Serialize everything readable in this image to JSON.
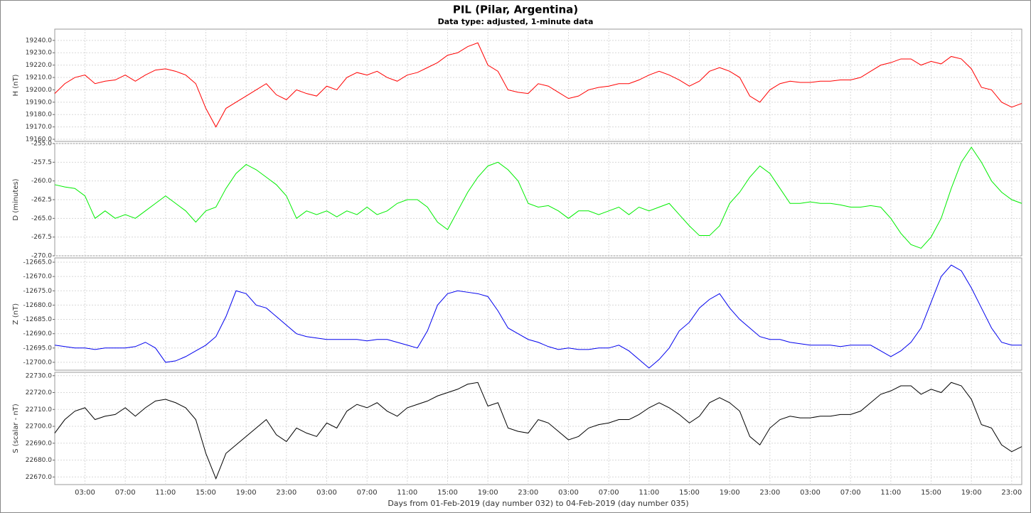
{
  "chart_data": {
    "type": "line",
    "title": "PIL (Pilar, Argentina)",
    "subtitle": "Data type: adjusted, 1-minute data",
    "x_label": "Days from 01-Feb-2019 (day number 032) to 04-Feb-2019 (day number 035)",
    "grid": true,
    "xlim": [
      0,
      96
    ],
    "xticks": [
      {
        "value": 3,
        "label": "03:00"
      },
      {
        "value": 7,
        "label": "07:00"
      },
      {
        "value": 11,
        "label": "11:00"
      },
      {
        "value": 15,
        "label": "15:00"
      },
      {
        "value": 19,
        "label": "19:00"
      },
      {
        "value": 23,
        "label": "23:00"
      },
      {
        "value": 27,
        "label": "03:00"
      },
      {
        "value": 31,
        "label": "07:00"
      },
      {
        "value": 35,
        "label": "11:00"
      },
      {
        "value": 39,
        "label": "15:00"
      },
      {
        "value": 43,
        "label": "19:00"
      },
      {
        "value": 47,
        "label": "23:00"
      },
      {
        "value": 51,
        "label": "03:00"
      },
      {
        "value": 55,
        "label": "07:00"
      },
      {
        "value": 59,
        "label": "11:00"
      },
      {
        "value": 63,
        "label": "15:00"
      },
      {
        "value": 67,
        "label": "19:00"
      },
      {
        "value": 71,
        "label": "23:00"
      },
      {
        "value": 75,
        "label": "03:00"
      },
      {
        "value": 79,
        "label": "07:00"
      },
      {
        "value": 83,
        "label": "11:00"
      },
      {
        "value": 87,
        "label": "15:00"
      },
      {
        "value": 91,
        "label": "19:00"
      },
      {
        "value": 95,
        "label": "23:00"
      }
    ],
    "x": [
      0,
      1,
      2,
      3,
      4,
      5,
      6,
      7,
      8,
      9,
      10,
      11,
      12,
      13,
      14,
      15,
      16,
      17,
      18,
      19,
      20,
      21,
      22,
      23,
      24,
      25,
      26,
      27,
      28,
      29,
      30,
      31,
      32,
      33,
      34,
      35,
      36,
      37,
      38,
      39,
      40,
      41,
      42,
      43,
      44,
      45,
      46,
      47,
      48,
      49,
      50,
      51,
      52,
      53,
      54,
      55,
      56,
      57,
      58,
      59,
      60,
      61,
      62,
      63,
      64,
      65,
      66,
      67,
      68,
      69,
      70,
      71,
      72,
      73,
      74,
      75,
      76,
      77,
      78,
      79,
      80,
      81,
      82,
      83,
      84,
      85,
      86,
      87,
      88,
      89,
      90,
      91,
      92,
      93,
      94,
      95,
      96
    ],
    "panels": [
      {
        "y_label": "H (nT)",
        "color": "#ff0000",
        "ylim": [
          19158.3,
          19249.1
        ],
        "yticks": [
          {
            "value": 19160,
            "label": "19160.0"
          },
          {
            "value": 19170,
            "label": "19170.0"
          },
          {
            "value": 19180,
            "label": "19180.0"
          },
          {
            "value": 19190,
            "label": "19190.0"
          },
          {
            "value": 19200,
            "label": "19200.0"
          },
          {
            "value": 19210,
            "label": "19210.0"
          },
          {
            "value": 19220,
            "label": "19220.0"
          },
          {
            "value": 19230,
            "label": "19230.0"
          },
          {
            "value": 19240,
            "label": "19240.0"
          }
        ],
        "values": [
          19197,
          19205,
          19210,
          19212,
          19205,
          19207,
          19208,
          19212,
          19207,
          19212,
          19216,
          19217,
          19215,
          19212,
          19205,
          19185,
          19170,
          19185,
          19190,
          19195,
          19200,
          19205,
          19196,
          19192,
          19200,
          19197,
          19195,
          19203,
          19200,
          19210,
          19214,
          19212,
          19215,
          19210,
          19207,
          19212,
          19214,
          19218,
          19222,
          19228,
          19230,
          19235,
          19238,
          19220,
          19215,
          19200,
          19198,
          19197,
          19205,
          19203,
          19198,
          19193,
          19195,
          19200,
          19202,
          19203,
          19205,
          19205,
          19208,
          19212,
          19215,
          19212,
          19208,
          19203,
          19207,
          19215,
          19218,
          19215,
          19210,
          19195,
          19190,
          19200,
          19205,
          19207,
          19206,
          19206,
          19207,
          19207,
          19208,
          19208,
          19210,
          19215,
          19220,
          19222,
          19225,
          19225,
          19220,
          19223,
          19221,
          19227,
          19225,
          19217,
          19202,
          19200,
          19190,
          19186,
          19189
        ]
      },
      {
        "y_label": "D (minutes)",
        "color": "#00ee00",
        "ylim": [
          -270,
          -255
        ],
        "yticks": [
          {
            "value": -270,
            "label": "-270.0"
          },
          {
            "value": -267.5,
            "label": "-267.5"
          },
          {
            "value": -265,
            "label": "-265.0"
          },
          {
            "value": -262.5,
            "label": "-262.5"
          },
          {
            "value": -260,
            "label": "-260.0"
          },
          {
            "value": -257.5,
            "label": "-257.5"
          },
          {
            "value": -255,
            "label": "-255.0"
          }
        ],
        "values": [
          -260.5,
          -260.8,
          -261,
          -262,
          -265,
          -264,
          -265,
          -264.5,
          -265,
          -264,
          -263,
          -262,
          -263,
          -264,
          -265.5,
          -264,
          -263.5,
          -261,
          -259,
          -257.8,
          -258.5,
          -259.5,
          -260.5,
          -262,
          -265,
          -264,
          -264.5,
          -264,
          -264.8,
          -264,
          -264.5,
          -263.5,
          -264.5,
          -264,
          -263,
          -262.5,
          -262.5,
          -263.5,
          -265.5,
          -266.5,
          -264,
          -261.5,
          -259.5,
          -258,
          -257.5,
          -258.5,
          -260,
          -263,
          -263.5,
          -263.3,
          -264,
          -265,
          -264,
          -264,
          -264.5,
          -264,
          -263.5,
          -264.5,
          -263.5,
          -264,
          -263.5,
          -263,
          -264.5,
          -266,
          -267.3,
          -267.3,
          -266,
          -263,
          -261.5,
          -259.5,
          -258,
          -259,
          -261,
          -263,
          -263,
          -262.8,
          -263,
          -263,
          -263.2,
          -263.5,
          -263.5,
          -263.3,
          -263.5,
          -265,
          -267,
          -268.5,
          -269,
          -267.5,
          -265,
          -261,
          -257.5,
          -255.5,
          -257.5,
          -260,
          -261.5,
          -262.5,
          -263
        ]
      },
      {
        "y_label": "Z (nT)",
        "color": "#0000ee",
        "ylim": [
          -12702.75,
          -12663.5
        ],
        "yticks": [
          {
            "value": -12700,
            "label": "-12700.0"
          },
          {
            "value": -12695,
            "label": "-12695.0"
          },
          {
            "value": -12690,
            "label": "-12690.0"
          },
          {
            "value": -12685,
            "label": "-12685.0"
          },
          {
            "value": -12680,
            "label": "-12680.0"
          },
          {
            "value": -12675,
            "label": "-12675.0"
          },
          {
            "value": -12670,
            "label": "-12670.0"
          },
          {
            "value": -12665,
            "label": "-12665.0"
          }
        ],
        "values": [
          -12694,
          -12694.5,
          -12695,
          -12695,
          -12695.5,
          -12695,
          -12695,
          -12695,
          -12694.5,
          -12693,
          -12695,
          -12700,
          -12699.5,
          -12698,
          -12696,
          -12694,
          -12691,
          -12684,
          -12675,
          -12676,
          -12680,
          -12681,
          -12684,
          -12687,
          -12690,
          -12691,
          -12691.5,
          -12692,
          -12692,
          -12692,
          -12692,
          -12692.5,
          -12692,
          -12692,
          -12693,
          -12694,
          -12695,
          -12689,
          -12680,
          -12676,
          -12675,
          -12675.5,
          -12676,
          -12677,
          -12682,
          -12688,
          -12690,
          -12692,
          -12693,
          -12694.5,
          -12695.5,
          -12695,
          -12695.5,
          -12695.5,
          -12695,
          -12695,
          -12694,
          -12696,
          -12699,
          -12702,
          -12699,
          -12695,
          -12689,
          -12686,
          -12681,
          -12678,
          -12676,
          -12681,
          -12685,
          -12688,
          -12691,
          -12692,
          -12692,
          -12693,
          -12693.5,
          -12694,
          -12694,
          -12694,
          -12694.5,
          -12694,
          -12694,
          -12694,
          -12696,
          -12698,
          -12696,
          -12693,
          -12688,
          -12679,
          -12670,
          -12666,
          -12668,
          -12674,
          -12681,
          -12688,
          -12693,
          -12694,
          -12694
        ]
      },
      {
        "y_label": "S (scalar - nT)",
        "color": "#000000",
        "ylim": [
          22665.5,
          22732
        ],
        "yticks": [
          {
            "value": 22670,
            "label": "22670.0"
          },
          {
            "value": 22680,
            "label": "22680.0"
          },
          {
            "value": 22690,
            "label": "22690.0"
          },
          {
            "value": 22700,
            "label": "22700.0"
          },
          {
            "value": 22710,
            "label": "22710.0"
          },
          {
            "value": 22720,
            "label": "22720.0"
          },
          {
            "value": 22730,
            "label": "22730.0"
          }
        ],
        "values": [
          22696,
          22704,
          22709,
          22711,
          22704,
          22706,
          22707,
          22711,
          22706,
          22711,
          22715,
          22716,
          22714,
          22711,
          22704,
          22684,
          22669,
          22684,
          22689,
          22694,
          22699,
          22704,
          22695,
          22691,
          22699,
          22696,
          22694,
          22702,
          22699,
          22709,
          22713,
          22711,
          22714,
          22709,
          22706,
          22711,
          22713,
          22715,
          22718,
          22720,
          22722,
          22725,
          22726,
          22712,
          22714,
          22699,
          22697,
          22696,
          22704,
          22702,
          22697,
          22692,
          22694,
          22699,
          22701,
          22702,
          22704,
          22704,
          22707,
          22711,
          22714,
          22711,
          22707,
          22702,
          22706,
          22714,
          22717,
          22714,
          22709,
          22694,
          22689,
          22699,
          22704,
          22706,
          22705,
          22705,
          22706,
          22706,
          22707,
          22707,
          22709,
          22714,
          22719,
          22721,
          22724,
          22724,
          22719,
          22722,
          22720,
          22726,
          22724,
          22716,
          22701,
          22699,
          22689,
          22685,
          22688
        ]
      }
    ]
  }
}
